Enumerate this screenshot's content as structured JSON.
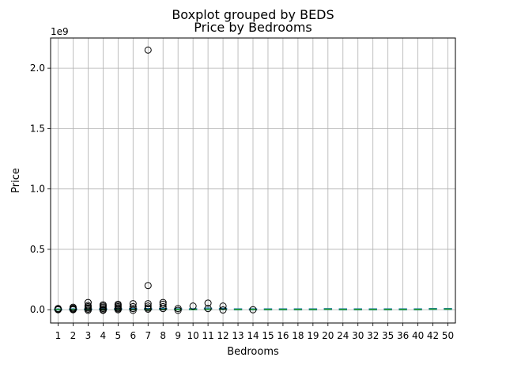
{
  "chart_data": {
    "type": "boxplot",
    "suptitle": "Boxplot grouped by BEDS",
    "title": "Price by Bedrooms",
    "xlabel": "Bedrooms",
    "ylabel": "Price",
    "offset_label": "1e9",
    "ylim": [
      -0.11,
      2.25
    ],
    "yticks": [
      0.0,
      0.5,
      1.0,
      1.5,
      2.0
    ],
    "ytick_labels": [
      "0.0",
      "0.5",
      "1.0",
      "1.5",
      "2.0"
    ],
    "grid": true,
    "categories": [
      "1",
      "2",
      "3",
      "4",
      "5",
      "6",
      "7",
      "8",
      "9",
      "10",
      "11",
      "12",
      "13",
      "14",
      "15",
      "16",
      "18",
      "19",
      "20",
      "24",
      "30",
      "32",
      "35",
      "36",
      "40",
      "42",
      "50"
    ],
    "boxes": [
      {
        "q1": 0.0,
        "median": 0.001,
        "q3": 0.002,
        "whisker_low": 0.0,
        "whisker_high": 0.004
      },
      {
        "q1": 0.0,
        "median": 0.001,
        "q3": 0.003,
        "whisker_low": 0.0,
        "whisker_high": 0.006
      },
      {
        "q1": 0.0,
        "median": 0.001,
        "q3": 0.003,
        "whisker_low": 0.0,
        "whisker_high": 0.007
      },
      {
        "q1": 0.0,
        "median": 0.002,
        "q3": 0.004,
        "whisker_low": 0.0,
        "whisker_high": 0.008
      },
      {
        "q1": 0.001,
        "median": 0.002,
        "q3": 0.005,
        "whisker_low": 0.0,
        "whisker_high": 0.01
      },
      {
        "q1": 0.001,
        "median": 0.002,
        "q3": 0.005,
        "whisker_low": 0.0,
        "whisker_high": 0.01
      },
      {
        "q1": 0.001,
        "median": 0.002,
        "q3": 0.005,
        "whisker_low": 0.0,
        "whisker_high": 0.01
      },
      {
        "q1": 0.001,
        "median": 0.003,
        "q3": 0.006,
        "whisker_low": 0.0,
        "whisker_high": 0.012
      },
      {
        "q1": 0.001,
        "median": 0.002,
        "q3": 0.004,
        "whisker_low": 0.0,
        "whisker_high": 0.008
      },
      {
        "q1": 0.001,
        "median": 0.002,
        "q3": 0.004,
        "whisker_low": 0.0,
        "whisker_high": 0.008
      },
      {
        "q1": 0.002,
        "median": 0.004,
        "q3": 0.008,
        "whisker_low": 0.0,
        "whisker_high": 0.015
      },
      {
        "q1": 0.002,
        "median": 0.004,
        "q3": 0.007,
        "whisker_low": 0.0,
        "whisker_high": 0.012
      },
      {
        "q1": 0.001,
        "median": 0.002,
        "q3": 0.003,
        "whisker_low": 0.0,
        "whisker_high": 0.004
      },
      {
        "q1": 0.001,
        "median": 0.002,
        "q3": 0.003,
        "whisker_low": 0.0,
        "whisker_high": 0.004
      },
      {
        "q1": 0.001,
        "median": 0.002,
        "q3": 0.003,
        "whisker_low": 0.0,
        "whisker_high": 0.004
      },
      {
        "q1": 0.001,
        "median": 0.002,
        "q3": 0.003,
        "whisker_low": 0.0,
        "whisker_high": 0.004
      },
      {
        "q1": 0.001,
        "median": 0.002,
        "q3": 0.003,
        "whisker_low": 0.0,
        "whisker_high": 0.004
      },
      {
        "q1": 0.001,
        "median": 0.002,
        "q3": 0.003,
        "whisker_low": 0.0,
        "whisker_high": 0.004
      },
      {
        "q1": 0.003,
        "median": 0.004,
        "q3": 0.005,
        "whisker_low": 0.002,
        "whisker_high": 0.006
      },
      {
        "q1": 0.001,
        "median": 0.002,
        "q3": 0.003,
        "whisker_low": 0.0,
        "whisker_high": 0.004
      },
      {
        "q1": 0.001,
        "median": 0.002,
        "q3": 0.003,
        "whisker_low": 0.0,
        "whisker_high": 0.004
      },
      {
        "q1": 0.001,
        "median": 0.002,
        "q3": 0.003,
        "whisker_low": 0.0,
        "whisker_high": 0.004
      },
      {
        "q1": 0.001,
        "median": 0.002,
        "q3": 0.003,
        "whisker_low": 0.0,
        "whisker_high": 0.004
      },
      {
        "q1": 0.001,
        "median": 0.002,
        "q3": 0.003,
        "whisker_low": 0.0,
        "whisker_high": 0.004
      },
      {
        "q1": 0.001,
        "median": 0.002,
        "q3": 0.003,
        "whisker_low": 0.0,
        "whisker_high": 0.004
      },
      {
        "q1": 0.004,
        "median": 0.005,
        "q3": 0.006,
        "whisker_low": 0.003,
        "whisker_high": 0.007
      },
      {
        "q1": 0.004,
        "median": 0.005,
        "q3": 0.006,
        "whisker_low": 0.003,
        "whisker_high": 0.007
      }
    ],
    "outliers": [
      {
        "category": "1",
        "values": [
          0.0,
          0.005,
          0.01
        ]
      },
      {
        "category": "2",
        "values": [
          0.0,
          0.005,
          0.012,
          0.02
        ]
      },
      {
        "category": "3",
        "values": [
          -0.005,
          0.005,
          0.015,
          0.025,
          0.035,
          0.06
        ]
      },
      {
        "category": "4",
        "values": [
          -0.005,
          0.0,
          0.01,
          0.02,
          0.03,
          0.04
        ]
      },
      {
        "category": "5",
        "values": [
          0.0,
          0.008,
          0.015,
          0.025,
          0.035,
          0.045
        ]
      },
      {
        "category": "6",
        "values": [
          -0.005,
          0.01,
          0.025,
          0.05
        ]
      },
      {
        "category": "7",
        "values": [
          0.005,
          0.015,
          0.03,
          0.05,
          0.2,
          2.15
        ]
      },
      {
        "category": "8",
        "values": [
          0.01,
          0.025,
          0.045,
          0.06
        ]
      },
      {
        "category": "9",
        "values": [
          -0.005,
          0.01
        ]
      },
      {
        "category": "10",
        "values": [
          0.03
        ]
      },
      {
        "category": "11",
        "values": [
          0.01,
          0.055
        ]
      },
      {
        "category": "12",
        "values": [
          -0.002,
          0.03
        ]
      },
      {
        "category": "14",
        "values": [
          0.0
        ]
      }
    ],
    "colors": {
      "box": "#1f77b4",
      "median": "#2ca02c",
      "grid": "#b0b0b0",
      "axes": "#000000"
    }
  }
}
